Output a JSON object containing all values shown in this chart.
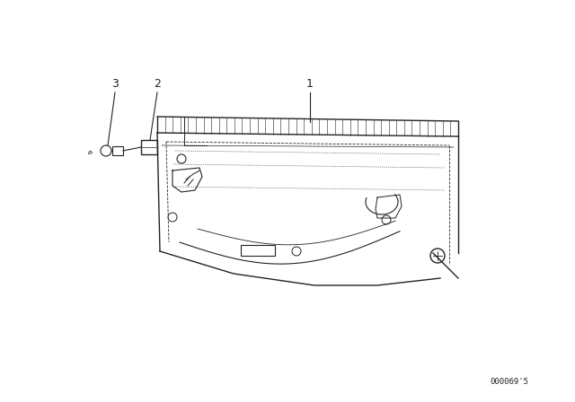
{
  "background_color": "#ffffff",
  "line_color": "#222222",
  "fig_width": 6.4,
  "fig_height": 4.48,
  "dpi": 100,
  "catalog_number": "000069'5",
  "catalog_fontsize": 6.5,
  "label_fontsize": 9
}
